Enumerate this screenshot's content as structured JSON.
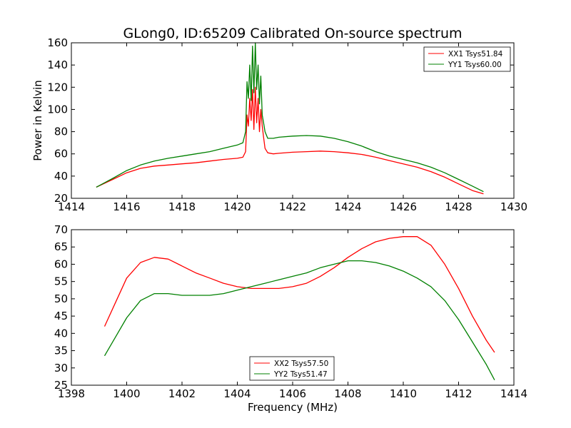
{
  "chart_data": [
    {
      "type": "line",
      "title": "GLong0, ID:65209 Calibrated On-source spectrum",
      "xlabel": "",
      "ylabel": "Power in Kelvin",
      "xlim": [
        1414,
        1430
      ],
      "ylim": [
        20,
        160
      ],
      "xticks": [
        "1414",
        "1416",
        "1418",
        "1420",
        "1422",
        "1424",
        "1426",
        "1428",
        "1430"
      ],
      "yticks": [
        "20",
        "40",
        "60",
        "80",
        "100",
        "120",
        "140",
        "160"
      ],
      "legend_position": "top-right",
      "series": [
        {
          "name": "XX1 Tsys51.84",
          "color": "#ff0000",
          "x": [
            1414.9,
            1415.5,
            1416.0,
            1416.5,
            1417.0,
            1417.5,
            1418.0,
            1418.5,
            1419.0,
            1419.5,
            1420.0,
            1420.2,
            1420.3,
            1420.35,
            1420.4,
            1420.45,
            1420.5,
            1420.55,
            1420.6,
            1420.65,
            1420.7,
            1420.75,
            1420.8,
            1420.85,
            1420.9,
            1420.95,
            1421.0,
            1421.1,
            1421.3,
            1421.5,
            1422.0,
            1422.5,
            1423.0,
            1423.5,
            1424.0,
            1424.5,
            1425.0,
            1425.5,
            1426.0,
            1426.5,
            1427.0,
            1427.5,
            1428.0,
            1428.5,
            1428.9
          ],
          "y": [
            30,
            37,
            43,
            47,
            49,
            50,
            51,
            52,
            53.5,
            55,
            56,
            57,
            62,
            95,
            85,
            110,
            90,
            118,
            82,
            120,
            88,
            110,
            80,
            100,
            85,
            75,
            65,
            61,
            60,
            60.5,
            61.5,
            62,
            62.5,
            62,
            61,
            59.5,
            57,
            54,
            51,
            48,
            44,
            39,
            33,
            27,
            24
          ]
        },
        {
          "name": "YY1 Tsys60.00",
          "color": "#008000",
          "x": [
            1414.9,
            1415.5,
            1416.0,
            1416.5,
            1417.0,
            1417.5,
            1418.0,
            1418.5,
            1419.0,
            1419.5,
            1420.0,
            1420.2,
            1420.3,
            1420.35,
            1420.4,
            1420.45,
            1420.5,
            1420.55,
            1420.6,
            1420.65,
            1420.7,
            1420.75,
            1420.8,
            1420.85,
            1420.9,
            1420.95,
            1421.0,
            1421.1,
            1421.3,
            1421.5,
            1422.0,
            1422.5,
            1423.0,
            1423.5,
            1424.0,
            1424.5,
            1425.0,
            1425.5,
            1426.0,
            1426.5,
            1427.0,
            1427.5,
            1428.0,
            1428.5,
            1428.9
          ],
          "y": [
            30,
            38,
            45,
            50,
            53.5,
            56,
            58,
            60,
            62,
            65,
            68,
            70,
            80,
            125,
            110,
            140,
            108,
            157,
            115,
            160,
            118,
            140,
            105,
            130,
            95,
            88,
            80,
            74,
            74,
            75,
            76,
            76.5,
            76,
            74,
            71,
            67,
            62,
            58,
            55,
            52,
            48,
            43,
            37,
            31,
            26
          ]
        }
      ]
    },
    {
      "type": "line",
      "title": "",
      "xlabel": "Frequency (MHz)",
      "ylabel": "",
      "xlim": [
        1398,
        1414
      ],
      "ylim": [
        25,
        70
      ],
      "xticks": [
        "1398",
        "1400",
        "1402",
        "1404",
        "1406",
        "1408",
        "1410",
        "1412",
        "1414"
      ],
      "yticks": [
        "25",
        "30",
        "35",
        "40",
        "45",
        "50",
        "55",
        "60",
        "65",
        "70"
      ],
      "legend_position": "bottom-center",
      "series": [
        {
          "name": "XX2 Tsys57.50",
          "color": "#ff0000",
          "x": [
            1399.2,
            1399.6,
            1400.0,
            1400.5,
            1401.0,
            1401.5,
            1402.0,
            1402.5,
            1403.0,
            1403.5,
            1404.0,
            1404.5,
            1405.0,
            1405.5,
            1406.0,
            1406.5,
            1407.0,
            1407.5,
            1408.0,
            1408.5,
            1409.0,
            1409.5,
            1410.0,
            1410.5,
            1411.0,
            1411.5,
            1412.0,
            1412.5,
            1413.0,
            1413.3
          ],
          "y": [
            42,
            49,
            56,
            60.5,
            62,
            61.5,
            59.5,
            57.5,
            56,
            54.5,
            53.5,
            53,
            53,
            53,
            53.5,
            54.5,
            56.5,
            59,
            62,
            64.5,
            66.5,
            67.5,
            68,
            68,
            65.5,
            60,
            53,
            45,
            38,
            34.5
          ]
        },
        {
          "name": "YY2 Tsys51.47",
          "color": "#008000",
          "x": [
            1399.2,
            1399.6,
            1400.0,
            1400.5,
            1401.0,
            1401.5,
            1402.0,
            1402.5,
            1403.0,
            1403.5,
            1404.0,
            1404.5,
            1405.0,
            1405.5,
            1406.0,
            1406.5,
            1407.0,
            1407.5,
            1408.0,
            1408.5,
            1409.0,
            1409.5,
            1410.0,
            1410.5,
            1411.0,
            1411.5,
            1412.0,
            1412.5,
            1413.0,
            1413.3
          ],
          "y": [
            33.5,
            39,
            44.5,
            49.5,
            51.5,
            51.5,
            51,
            51,
            51,
            51.5,
            52.5,
            53.5,
            54.5,
            55.5,
            56.5,
            57.5,
            59,
            60,
            61,
            61,
            60.5,
            59.5,
            58,
            56,
            53.5,
            49.5,
            44,
            37.5,
            31,
            26.5
          ]
        }
      ]
    }
  ]
}
